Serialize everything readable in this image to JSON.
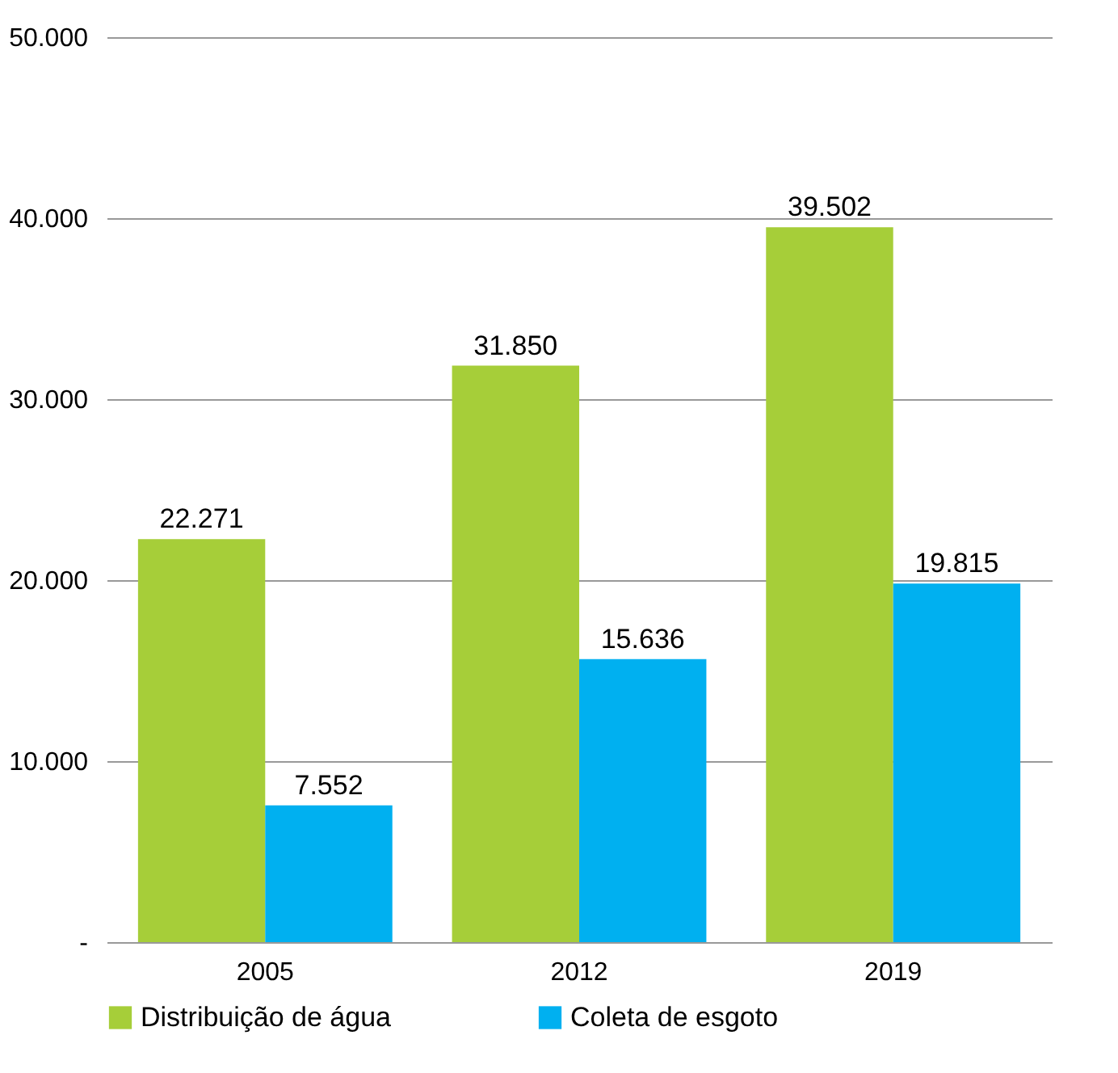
{
  "chart_data": {
    "type": "bar",
    "categories": [
      "2005",
      "2012",
      "2019"
    ],
    "series": [
      {
        "name": "Distribuição de água",
        "color": "#a6ce39",
        "values": [
          22271,
          31850,
          39502
        ],
        "value_labels": [
          "22.271",
          "31.850",
          "39.502"
        ]
      },
      {
        "name": "Coleta de esgoto",
        "color": "#00b0f0",
        "values": [
          7552,
          15636,
          19815
        ],
        "value_labels": [
          "7.552",
          "15.636",
          "19.815"
        ]
      }
    ],
    "ylim": [
      0,
      50000
    ],
    "yticks": [
      {
        "value": 0,
        "label": "-"
      },
      {
        "value": 10000,
        "label": "10.000"
      },
      {
        "value": 20000,
        "label": "20.000"
      },
      {
        "value": 30000,
        "label": "30.000"
      },
      {
        "value": 40000,
        "label": "40.000"
      },
      {
        "value": 50000,
        "label": "50.000"
      }
    ],
    "grid": "y",
    "legend": "bottom"
  }
}
